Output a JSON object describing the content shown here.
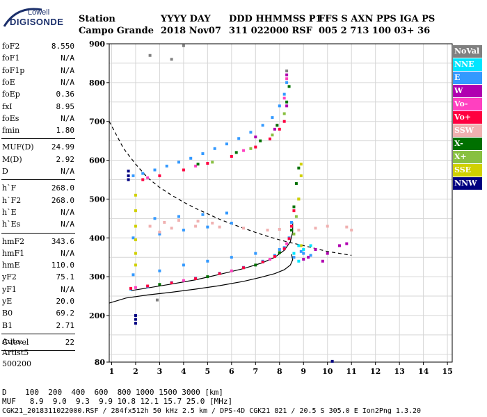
{
  "logo": {
    "line1": "Lowell",
    "line2": "DIGISONDE"
  },
  "header": {
    "row1": [
      "Station",
      "YYYY DAY",
      "DDD HHMMSS P1",
      "FFS S AXN PPS IGA PS"
    ],
    "row2": [
      "Campo Grande",
      "2018 Nov07",
      "311 022000 RSF",
      "005 2 713 100 03+ 36"
    ]
  },
  "params": [
    {
      "key": "foF2",
      "val": "8.550"
    },
    {
      "key": "foF1",
      "val": "N/A"
    },
    {
      "key": "foF1p",
      "val": "N/A"
    },
    {
      "key": "foE",
      "val": "N/A"
    },
    {
      "key": "foEp",
      "val": "0.36"
    },
    {
      "key": "fxI",
      "val": "8.95"
    },
    {
      "key": "foEs",
      "val": "N/A"
    },
    {
      "key": "fmin",
      "val": "1.80"
    },
    {
      "key": "MUF(D)",
      "val": "24.99"
    },
    {
      "key": "M(D)",
      "val": "2.92"
    },
    {
      "key": "D",
      "val": "N/A"
    },
    {
      "key": "h`F",
      "val": "268.0"
    },
    {
      "key": "h`F2",
      "val": "268.0"
    },
    {
      "key": "h`E",
      "val": "N/A"
    },
    {
      "key": "h`Es",
      "val": "N/A"
    },
    {
      "key": "hmF2",
      "val": "343.6"
    },
    {
      "key": "hmF1",
      "val": "N/A"
    },
    {
      "key": "hmE",
      "val": "110.0"
    },
    {
      "key": "yF2",
      "val": "75.1"
    },
    {
      "key": "yF1",
      "val": "N/A"
    },
    {
      "key": "yE",
      "val": "20.0"
    },
    {
      "key": "B0",
      "val": "69.2"
    },
    {
      "key": "B1",
      "val": "2.71"
    },
    {
      "key": "C-level",
      "val": "22"
    }
  ],
  "auto": {
    "line1": "Auto:",
    "line2": "Artist5",
    "line3": "500200"
  },
  "legend": [
    {
      "label": "NoVal",
      "color": "#808080"
    },
    {
      "label": "NNE",
      "color": "#00e5ff"
    },
    {
      "label": "E",
      "color": "#3399ff"
    },
    {
      "label": "W",
      "color": "#b000b0"
    },
    {
      "label": "Vo-",
      "color": "#ff40c0"
    },
    {
      "label": "Vo+",
      "color": "#ff0040"
    },
    {
      "label": "SSW",
      "color": "#f0b0b0"
    },
    {
      "label": "X-",
      "color": "#007000"
    },
    {
      "label": "X+",
      "color": "#88c040"
    },
    {
      "label": "SSE",
      "color": "#d0d000"
    },
    {
      "label": "NNW",
      "color": "#000080"
    }
  ],
  "bottom": {
    "d_row": "D    100  200  400  600  800 1000 1500 3000 [km]",
    "muf_row": "MUF   8.9  9.0  9.3  9.9 10.8 12.1 15.7 25.0 [MHz]",
    "footer": "CGK21_2018311022000.RSF / 284fx512h 50 kHz 2.5 km / DPS-4D CGK21 821 / 20.5 S 305.0 E Ion2Png 1.3.20"
  },
  "chart_data": {
    "type": "scatter",
    "xlabel": "",
    "ylabel": "",
    "xlim": [
      0.9,
      15.2
    ],
    "ylim": [
      80,
      900
    ],
    "xticks": [
      1,
      2,
      3,
      4,
      5,
      6,
      7,
      8,
      9,
      10,
      11,
      12,
      13,
      14,
      15
    ],
    "yticks": [
      80,
      200,
      300,
      400,
      500,
      600,
      700,
      800,
      900
    ],
    "grid": true,
    "legend_placement": "right",
    "series": [
      {
        "name": "E",
        "color": "#3399ff",
        "points": [
          [
            1.9,
            560
          ],
          [
            2.3,
            566
          ],
          [
            2.8,
            575
          ],
          [
            3.3,
            585
          ],
          [
            3.8,
            595
          ],
          [
            4.3,
            605
          ],
          [
            4.8,
            617
          ],
          [
            5.3,
            630
          ],
          [
            5.8,
            642
          ],
          [
            6.3,
            656
          ],
          [
            6.8,
            672
          ],
          [
            7.3,
            690
          ],
          [
            7.7,
            710
          ],
          [
            8.0,
            740
          ],
          [
            8.2,
            770
          ],
          [
            8.3,
            800
          ],
          [
            1.8,
            268
          ],
          [
            2.5,
            274
          ],
          [
            3.5,
            285
          ],
          [
            4.5,
            296
          ],
          [
            5.5,
            309
          ],
          [
            6.5,
            324
          ],
          [
            7.3,
            340
          ],
          [
            7.8,
            355
          ],
          [
            8.2,
            375
          ],
          [
            8.4,
            400
          ],
          [
            8.5,
            440
          ],
          [
            1.9,
            305
          ],
          [
            3.0,
            315
          ],
          [
            4.0,
            330
          ],
          [
            5.0,
            340
          ],
          [
            6.0,
            350
          ],
          [
            7.0,
            360
          ],
          [
            8.0,
            370
          ],
          [
            9.0,
            360
          ],
          [
            1.9,
            400
          ],
          [
            3.0,
            410
          ],
          [
            4.0,
            420
          ],
          [
            5.0,
            428
          ],
          [
            6.0,
            438
          ],
          [
            2.8,
            450
          ],
          [
            3.8,
            455
          ],
          [
            4.8,
            460
          ],
          [
            5.8,
            464
          ],
          [
            8.6,
            350
          ],
          [
            8.9,
            365
          ],
          [
            9.3,
            355
          ]
        ]
      },
      {
        "name": "Vo+",
        "color": "#ff0040",
        "points": [
          [
            2.3,
            550
          ],
          [
            3.0,
            560
          ],
          [
            4.0,
            575
          ],
          [
            5.0,
            592
          ],
          [
            6.0,
            610
          ],
          [
            7.0,
            634
          ],
          [
            7.6,
            655
          ],
          [
            8.0,
            680
          ],
          [
            8.2,
            700
          ],
          [
            1.8,
            270
          ],
          [
            2.5,
            276
          ],
          [
            3.5,
            284
          ],
          [
            4.5,
            295
          ],
          [
            5.5,
            308
          ],
          [
            6.5,
            323
          ],
          [
            7.3,
            338
          ],
          [
            7.8,
            352
          ],
          [
            8.2,
            372
          ],
          [
            8.4,
            398
          ],
          [
            8.5,
            430
          ],
          [
            8.6,
            470
          ]
        ]
      },
      {
        "name": "Vo-",
        "color": "#ff40c0",
        "points": [
          [
            2.5,
            555
          ],
          [
            4.5,
            585
          ],
          [
            6.5,
            625
          ],
          [
            7.9,
            690
          ],
          [
            8.2,
            760
          ],
          [
            8.3,
            810
          ],
          [
            2.0,
            272
          ],
          [
            4.0,
            290
          ],
          [
            6.0,
            315
          ],
          [
            7.6,
            345
          ],
          [
            8.3,
            385
          ]
        ]
      },
      {
        "name": "X-",
        "color": "#007000",
        "points": [
          [
            4.6,
            590
          ],
          [
            6.2,
            620
          ],
          [
            7.2,
            650
          ],
          [
            7.9,
            690
          ],
          [
            8.3,
            750
          ],
          [
            8.4,
            790
          ],
          [
            3.0,
            280
          ],
          [
            5.0,
            300
          ],
          [
            7.0,
            330
          ],
          [
            8.0,
            362
          ],
          [
            8.5,
            420
          ],
          [
            8.6,
            480
          ],
          [
            8.7,
            540
          ],
          [
            8.8,
            580
          ]
        ]
      },
      {
        "name": "X+",
        "color": "#88c040",
        "points": [
          [
            5.2,
            595
          ],
          [
            6.8,
            630
          ],
          [
            7.7,
            665
          ],
          [
            8.2,
            720
          ],
          [
            8.6,
            410
          ],
          [
            8.7,
            455
          ],
          [
            8.8,
            500
          ]
        ]
      },
      {
        "name": "W",
        "color": "#b000b0",
        "points": [
          [
            7.0,
            660
          ],
          [
            7.8,
            680
          ],
          [
            8.3,
            740
          ],
          [
            8.3,
            820
          ],
          [
            9.2,
            350
          ],
          [
            9.5,
            370
          ],
          [
            10.0,
            360
          ],
          [
            10.5,
            380
          ],
          [
            10.8,
            385
          ],
          [
            9.8,
            340
          ],
          [
            9.0,
            345
          ]
        ]
      },
      {
        "name": "SSW",
        "color": "#f0b0b0",
        "points": [
          [
            3.0,
            415
          ],
          [
            3.5,
            425
          ],
          [
            4.5,
            430
          ],
          [
            5.5,
            428
          ],
          [
            6.5,
            425
          ],
          [
            7.5,
            420
          ],
          [
            8.0,
            422
          ],
          [
            8.8,
            420
          ],
          [
            9.5,
            425
          ],
          [
            10.0,
            430
          ],
          [
            10.8,
            428
          ],
          [
            11.0,
            420
          ],
          [
            2.6,
            430
          ],
          [
            3.2,
            440
          ],
          [
            3.8,
            445
          ],
          [
            4.6,
            443
          ],
          [
            5.2,
            438
          ]
        ]
      },
      {
        "name": "SSE",
        "color": "#d0d000",
        "points": [
          [
            8.8,
            500
          ],
          [
            8.9,
            560
          ],
          [
            8.9,
            590
          ],
          [
            2.0,
            330
          ],
          [
            2.0,
            360
          ],
          [
            2.0,
            395
          ],
          [
            2.0,
            430
          ],
          [
            2.0,
            470
          ],
          [
            2.0,
            510
          ],
          [
            8.9,
            380
          ]
        ]
      },
      {
        "name": "NNW",
        "color": "#000080",
        "points": [
          [
            1.7,
            560
          ],
          [
            1.7,
            572
          ],
          [
            1.7,
            550
          ],
          [
            2.0,
            200
          ],
          [
            2.0,
            190
          ],
          [
            2.0,
            180
          ],
          [
            10.2,
            82
          ]
        ]
      },
      {
        "name": "NNE",
        "color": "#00e5ff",
        "points": [
          [
            8.6,
            360
          ],
          [
            8.8,
            380
          ],
          [
            9.0,
            370
          ],
          [
            9.3,
            380
          ],
          [
            8.8,
            340
          ]
        ]
      },
      {
        "name": "NoVal",
        "color": "#808080",
        "points": [
          [
            8.3,
            830
          ],
          [
            2.6,
            870
          ],
          [
            3.5,
            860
          ],
          [
            4.0,
            895
          ],
          [
            2.9,
            240
          ]
        ]
      }
    ],
    "curves": [
      {
        "name": "",
        "style": "solid",
        "points": [
          [
            0.9,
            232
          ],
          [
            1.6,
            245
          ],
          [
            2.5,
            253
          ],
          [
            3.5,
            260
          ],
          [
            4.5,
            268
          ],
          [
            5.5,
            277
          ],
          [
            6.5,
            288
          ],
          [
            7.2,
            298
          ],
          [
            7.8,
            308
          ],
          [
            8.2,
            318
          ],
          [
            8.45,
            330
          ],
          [
            8.55,
            343.6
          ],
          [
            8.5,
            358
          ]
        ]
      },
      {
        "name": "",
        "style": "solid",
        "points": [
          [
            1.8,
            264
          ],
          [
            2.5,
            271
          ],
          [
            3.5,
            281
          ],
          [
            4.5,
            292
          ],
          [
            5.5,
            306
          ],
          [
            6.5,
            321
          ],
          [
            7.3,
            336
          ],
          [
            7.8,
            350
          ],
          [
            8.2,
            368
          ],
          [
            8.45,
            390
          ],
          [
            8.55,
            415
          ],
          [
            8.55,
            440
          ]
        ]
      },
      {
        "name": "",
        "style": "dashed",
        "points": [
          [
            0.9,
            700
          ],
          [
            1.5,
            630
          ],
          [
            2.0,
            590
          ],
          [
            2.5,
            555
          ],
          [
            3.0,
            530
          ],
          [
            3.5,
            510
          ],
          [
            4.0,
            492
          ],
          [
            4.5,
            476
          ],
          [
            5.0,
            462
          ],
          [
            5.5,
            448
          ],
          [
            6.0,
            436
          ],
          [
            6.5,
            425
          ],
          [
            7.0,
            414
          ],
          [
            7.5,
            404
          ],
          [
            8.0,
            395
          ],
          [
            8.5,
            387
          ],
          [
            9.0,
            380
          ],
          [
            10.0,
            365
          ],
          [
            11.0,
            355
          ]
        ]
      }
    ]
  }
}
